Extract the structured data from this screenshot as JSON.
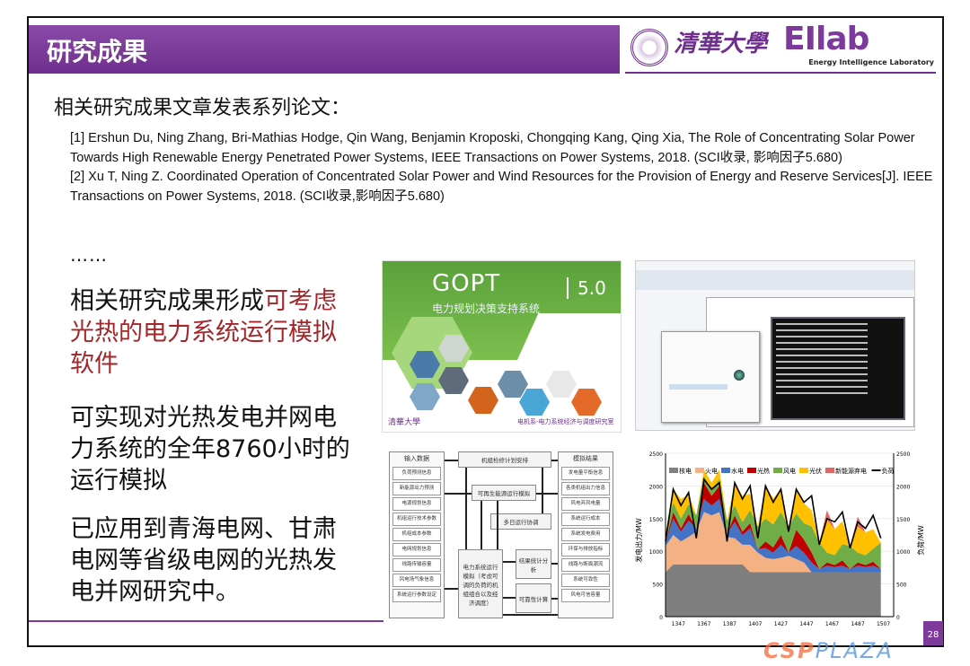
{
  "header": {
    "title": "研究成果",
    "logo_university": "清華大學",
    "logo_lab": "EIlab",
    "logo_lab_subtitle": "Energy Intelligence Laboratory"
  },
  "heading": "相关研究成果文章发表系列论文：",
  "references": [
    "[1] Ershun Du, Ning Zhang, Bri-Mathias Hodge, Qin Wang, Benjamin Kroposki, Chongqing Kang, Qing Xia, The Role of Concentrating Solar Power Towards High Renewable Energy Penetrated Power Systems, IEEE Transactions on Power Systems, 2018. (SCI收录, 影响因子5.680)",
    "[2] Xu T, Ning Z. Coordinated Operation of Concentrated Solar Power and Wind Resources for the Provision of Energy and Reserve Services[J]. IEEE Transactions on Power Systems, 2018. (SCI收录,影响因子5.680)"
  ],
  "ellipsis": "……",
  "points": [
    {
      "text": "相关研究成果形成",
      "highlight": "可考虑光热的电力系统运行模拟软件"
    },
    {
      "text": "可实现对光热发电并网电力系统的全年8760小时的运行模拟"
    },
    {
      "text": "已应用到青海电网、甘肃电网等省级电网的光热发电并网研究中。"
    }
  ],
  "gopt": {
    "name": "GOPT",
    "subtitle": "电力规划决策支持系统",
    "version": "5.0",
    "footer_left": "清華大學",
    "footer_right": "电机系-电力系统经济与调度研究室"
  },
  "diagram": {
    "input_header": "输入数据",
    "inputs": [
      "负荷预测信息",
      "新能源出力预测",
      "电源规划信息",
      "机组运行技术参数",
      "机组成本参数",
      "电网规划信息",
      "线路传输容量",
      "风电场气象信息",
      "系统运行参数设定"
    ],
    "maintenance": "机组检修计划安排",
    "renewable": "可再生能源运行模拟",
    "multiday": "多日运行协调",
    "simulation": "电力系统运行模拟（考虑可调的负荷的机组组合以及经济调度）",
    "statistics": "结果统计分析",
    "reliability": "可靠性计算",
    "output_header": "模拟结果",
    "outputs": [
      "发电量平衡信息",
      "各类机组出力信息",
      "风电弃风电量",
      "系统运行成本",
      "系统发电费用",
      "环保与排放指标",
      "线路与断面潮流",
      "系统可靠性",
      "风电可信容量"
    ]
  },
  "chart_data": {
    "type": "area",
    "stacked": true,
    "ylabel": "发电出力/MW",
    "y2label": "负荷/MW",
    "ylim": [
      0,
      2500
    ],
    "yticks": [
      0,
      500,
      1000,
      1500,
      2000,
      2500
    ],
    "xticks": [
      "1347",
      "1367",
      "1387",
      "1407",
      "1427",
      "1447",
      "1467",
      "1487",
      "1507"
    ],
    "xlim": [
      1337,
      1515
    ],
    "grid": true,
    "legend_position": "top",
    "x": [
      1337,
      1343,
      1349,
      1355,
      1361,
      1367,
      1373,
      1379,
      1385,
      1391,
      1397,
      1403,
      1409,
      1415,
      1421,
      1427,
      1433,
      1439,
      1445,
      1451,
      1457,
      1463,
      1469,
      1475,
      1481,
      1487,
      1493,
      1499,
      1505
    ],
    "series": [
      {
        "name": "核电",
        "color": "#7f7f7f",
        "values": [
          680,
          800,
          800,
          800,
          800,
          800,
          800,
          800,
          800,
          800,
          800,
          680,
          680,
          680,
          680,
          680,
          680,
          680,
          680,
          680,
          680,
          680,
          680,
          680,
          680,
          680,
          680,
          680,
          680
        ]
      },
      {
        "name": "火电",
        "color": "#f4b183",
        "values": [
          400,
          450,
          350,
          420,
          500,
          800,
          750,
          800,
          420,
          400,
          300,
          420,
          300,
          220,
          200,
          220,
          250,
          200,
          150,
          0,
          0,
          0,
          0,
          0,
          0,
          0,
          0,
          0,
          0
        ]
      },
      {
        "name": "水电",
        "color": "#4472c4",
        "values": [
          50,
          250,
          150,
          250,
          50,
          200,
          150,
          200,
          50,
          250,
          150,
          250,
          50,
          150,
          100,
          200,
          50,
          200,
          150,
          150,
          50,
          100,
          80,
          100,
          50,
          100,
          80,
          100,
          50
        ]
      },
      {
        "name": "光热",
        "color": "#c00000",
        "values": [
          0,
          100,
          50,
          100,
          0,
          250,
          150,
          200,
          0,
          100,
          50,
          80,
          0,
          100,
          80,
          150,
          0,
          250,
          200,
          150,
          0,
          50,
          30,
          80,
          0,
          50,
          30,
          60,
          0
        ]
      },
      {
        "name": "风电",
        "color": "#70ad47",
        "values": [
          150,
          150,
          150,
          150,
          200,
          100,
          100,
          100,
          200,
          150,
          150,
          200,
          350,
          350,
          350,
          350,
          400,
          250,
          250,
          400,
          400,
          150,
          150,
          250,
          350,
          150,
          150,
          200,
          400
        ]
      },
      {
        "name": "光伏",
        "color": "#ffc000",
        "values": [
          0,
          200,
          300,
          150,
          0,
          100,
          100,
          150,
          0,
          350,
          400,
          250,
          0,
          500,
          400,
          350,
          0,
          350,
          300,
          250,
          0,
          500,
          400,
          350,
          0,
          400,
          350,
          300,
          0
        ]
      },
      {
        "name": "新能源弃电",
        "color": "#e06666",
        "values": [
          0,
          0,
          0,
          0,
          0,
          0,
          0,
          0,
          0,
          0,
          0,
          0,
          0,
          0,
          0,
          0,
          0,
          0,
          0,
          0,
          0,
          150,
          0,
          0,
          0,
          150,
          0,
          0,
          0
        ]
      }
    ],
    "line": {
      "name": "负荷",
      "color": "#000000",
      "values": [
        1150,
        1950,
        1700,
        1900,
        1200,
        2100,
        1950,
        2050,
        1150,
        2050,
        1800,
        2000,
        1200,
        2000,
        1750,
        1950,
        1300,
        1950,
        1750,
        1850,
        1100,
        1500,
        1450,
        1600,
        1050,
        1450,
        1350,
        1550,
        1200
      ]
    }
  },
  "footer": {
    "page_number": "28",
    "watermark_a": "CSP",
    "watermark_b": "PLAZA"
  },
  "colors": {
    "brand_purple": "#7d3a9c",
    "highlight_red": "#a3262a"
  }
}
